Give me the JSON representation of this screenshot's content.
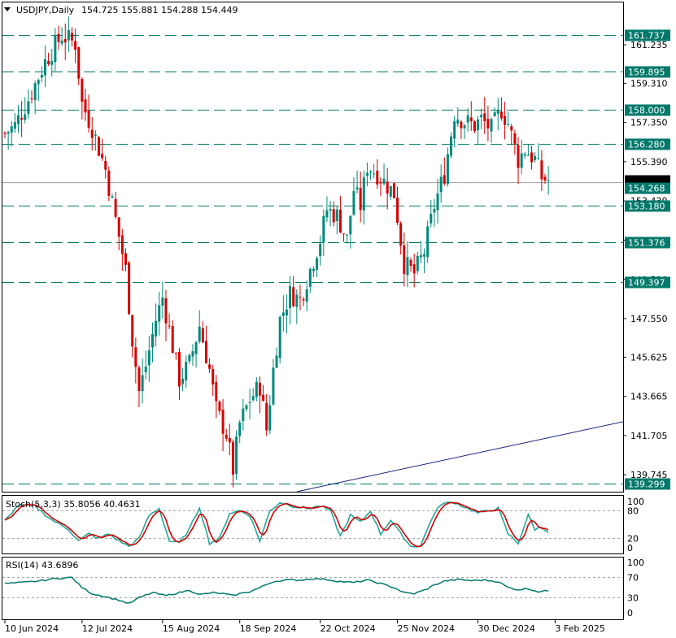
{
  "colors": {
    "bull": "#00897b",
    "bear": "#d50000",
    "level_line": "#00796b",
    "level_label_bg": "#00796b",
    "price_label_bg": "#000000",
    "stoch_main": "#26a69a",
    "stoch_signal": "#d50000",
    "rsi": "#00796b",
    "trendline": "#1a237e"
  },
  "chart_data": [
    {
      "type": "candlestick",
      "title": "USDJPY,Daily",
      "ohlc_text": "154.725 155.881 154.288 154.449",
      "ylim": [
        138.9,
        163.35
      ],
      "y_ticks": [
        "161.235",
        "159.310",
        "157.350",
        "155.390",
        "153.430",
        "151.470",
        "149.510",
        "147.550",
        "145.625",
        "143.665",
        "141.705",
        "139.745"
      ],
      "x_labels": [
        "10 Jun 2024",
        "12 Jul 2024",
        "15 Aug 2024",
        "18 Sep 2024",
        "22 Oct 2024",
        "25 Nov 2024",
        "30 Dec 2024",
        "3 Feb 2025"
      ],
      "x_label_index": [
        0,
        23,
        47,
        70,
        94,
        117,
        141,
        164
      ],
      "total_slots": 185,
      "levels": [
        "161.737",
        "159.895",
        "158.000",
        "156.280",
        "153.180",
        "151.376",
        "149.397",
        "139.299"
      ],
      "current_price_label": "154.268",
      "trendline": [
        {
          "index": 87,
          "price": 138.9
        },
        {
          "index": 185,
          "price": 142.4
        }
      ],
      "close_anchors": [
        [
          0,
          156.8
        ],
        [
          3,
          157.2
        ],
        [
          7,
          158.5
        ],
        [
          12,
          160.4
        ],
        [
          17,
          161.7
        ],
        [
          21,
          161.3
        ],
        [
          23,
          158.3
        ],
        [
          26,
          157.1
        ],
        [
          30,
          155.0
        ],
        [
          33,
          152.5
        ],
        [
          36,
          150.0
        ],
        [
          38,
          146.5
        ],
        [
          40,
          143.9
        ],
        [
          42,
          145.2
        ],
        [
          45,
          147.5
        ],
        [
          47,
          148.6
        ],
        [
          49,
          147.0
        ],
        [
          52,
          144.5
        ],
        [
          55,
          145.3
        ],
        [
          58,
          147.2
        ],
        [
          61,
          145.0
        ],
        [
          63,
          143.0
        ],
        [
          66,
          141.8
        ],
        [
          68,
          140.0
        ],
        [
          70,
          142.3
        ],
        [
          73,
          143.5
        ],
        [
          76,
          144.2
        ],
        [
          78,
          142.0
        ],
        [
          80,
          145.0
        ],
        [
          82,
          147.5
        ],
        [
          85,
          148.8
        ],
        [
          88,
          148.5
        ],
        [
          91,
          150.0
        ],
        [
          94,
          151.5
        ],
        [
          96,
          153.0
        ],
        [
          99,
          152.7
        ],
        [
          102,
          151.5
        ],
        [
          104,
          154.0
        ],
        [
          106,
          153.2
        ],
        [
          108,
          155.2
        ],
        [
          111,
          154.8
        ],
        [
          113,
          154.4
        ],
        [
          116,
          153.8
        ],
        [
          119,
          150.3
        ],
        [
          122,
          149.8
        ],
        [
          125,
          150.9
        ],
        [
          128,
          153.2
        ],
        [
          131,
          154.8
        ],
        [
          134,
          157.8
        ],
        [
          137,
          157.4
        ],
        [
          140,
          157.2
        ],
        [
          142,
          157.5
        ],
        [
          145,
          157.0
        ],
        [
          148,
          158.0
        ],
        [
          150,
          157.3
        ],
        [
          153,
          155.5
        ],
        [
          155,
          156.0
        ],
        [
          158,
          155.5
        ],
        [
          160,
          154.6
        ],
        [
          162,
          154.45
        ]
      ]
    },
    {
      "type": "line",
      "title": "Stoch(5,3,3) 35.8056 40.4631",
      "ylim": [
        0,
        100
      ],
      "y_ticks": [
        "100",
        "80",
        "20",
        "0"
      ],
      "grid_levels": [
        80,
        20
      ],
      "series": [
        {
          "name": "main",
          "value": 35.8056
        },
        {
          "name": "signal",
          "value": 40.4631
        }
      ],
      "anchors": [
        [
          0,
          58
        ],
        [
          4,
          92
        ],
        [
          9,
          90
        ],
        [
          14,
          60
        ],
        [
          19,
          40
        ],
        [
          22,
          15
        ],
        [
          25,
          30
        ],
        [
          28,
          20
        ],
        [
          31,
          30
        ],
        [
          34,
          15
        ],
        [
          37,
          3
        ],
        [
          40,
          20
        ],
        [
          43,
          70
        ],
        [
          46,
          85
        ],
        [
          49,
          15
        ],
        [
          52,
          10
        ],
        [
          55,
          40
        ],
        [
          58,
          88
        ],
        [
          61,
          10
        ],
        [
          64,
          20
        ],
        [
          67,
          75
        ],
        [
          70,
          80
        ],
        [
          73,
          70
        ],
        [
          76,
          15
        ],
        [
          79,
          80
        ],
        [
          82,
          98
        ],
        [
          86,
          90
        ],
        [
          90,
          85
        ],
        [
          94,
          90
        ],
        [
          97,
          80
        ],
        [
          100,
          25
        ],
        [
          103,
          70
        ],
        [
          106,
          55
        ],
        [
          109,
          80
        ],
        [
          112,
          30
        ],
        [
          115,
          60
        ],
        [
          118,
          30
        ],
        [
          121,
          3
        ],
        [
          124,
          5
        ],
        [
          127,
          60
        ],
        [
          130,
          95
        ],
        [
          134,
          98
        ],
        [
          138,
          85
        ],
        [
          141,
          75
        ],
        [
          144,
          80
        ],
        [
          147,
          85
        ],
        [
          150,
          30
        ],
        [
          153,
          10
        ],
        [
          156,
          70
        ],
        [
          158,
          40
        ],
        [
          160,
          45
        ],
        [
          162,
          35
        ]
      ]
    },
    {
      "type": "line",
      "title": "RSI(14) 43.6896",
      "ylim": [
        0,
        100
      ],
      "y_ticks": [
        "100",
        "70",
        "30",
        "0"
      ],
      "grid_levels": [
        70,
        30
      ],
      "series": [
        {
          "name": "RSI",
          "value": 43.6896
        }
      ],
      "anchors": [
        [
          0,
          58
        ],
        [
          5,
          60
        ],
        [
          10,
          63
        ],
        [
          15,
          68
        ],
        [
          20,
          70
        ],
        [
          23,
          50
        ],
        [
          26,
          38
        ],
        [
          30,
          32
        ],
        [
          34,
          25
        ],
        [
          37,
          18
        ],
        [
          40,
          30
        ],
        [
          44,
          40
        ],
        [
          48,
          34
        ],
        [
          52,
          40
        ],
        [
          55,
          45
        ],
        [
          58,
          36
        ],
        [
          62,
          40
        ],
        [
          65,
          38
        ],
        [
          68,
          34
        ],
        [
          70,
          38
        ],
        [
          73,
          42
        ],
        [
          76,
          50
        ],
        [
          80,
          62
        ],
        [
          84,
          65
        ],
        [
          88,
          65
        ],
        [
          92,
          68
        ],
        [
          96,
          66
        ],
        [
          100,
          62
        ],
        [
          104,
          60
        ],
        [
          108,
          65
        ],
        [
          112,
          58
        ],
        [
          116,
          50
        ],
        [
          119,
          40
        ],
        [
          122,
          38
        ],
        [
          125,
          45
        ],
        [
          128,
          55
        ],
        [
          131,
          63
        ],
        [
          135,
          66
        ],
        [
          139,
          64
        ],
        [
          143,
          65
        ],
        [
          147,
          62
        ],
        [
          150,
          50
        ],
        [
          153,
          46
        ],
        [
          156,
          48
        ],
        [
          159,
          42
        ],
        [
          162,
          43.7
        ]
      ]
    }
  ]
}
